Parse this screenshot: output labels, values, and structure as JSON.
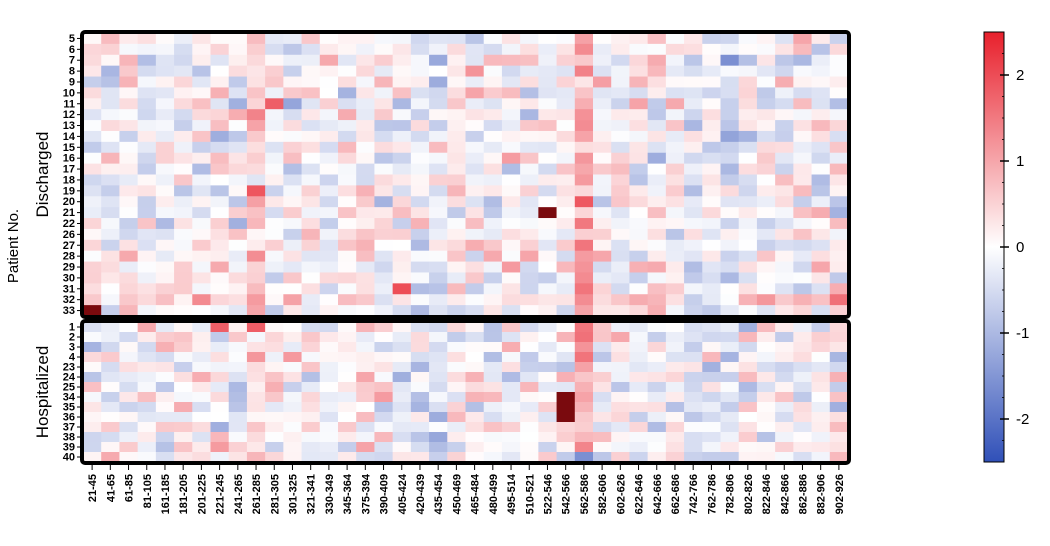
{
  "chart_data": {
    "type": "heatmap",
    "ylabel": "Patient No.",
    "x_labels": [
      "21-45",
      "41-65",
      "61-85",
      "81-105",
      "161-185",
      "181-205",
      "201-225",
      "221-245",
      "241-265",
      "261-285",
      "281-305",
      "301-325",
      "321-341",
      "330-349",
      "345-364",
      "375-394",
      "390-409",
      "405-424",
      "420-439",
      "435-454",
      "450-469",
      "465-484",
      "480-499",
      "495-514",
      "510-521",
      "522-546",
      "542-566",
      "562-586",
      "582-606",
      "602-626",
      "622-646",
      "642-666",
      "662-686",
      "742-766",
      "762-786",
      "782-806",
      "802-826",
      "822-846",
      "842-866",
      "862-886",
      "882-906",
      "902-926"
    ],
    "groups": [
      {
        "name": "Discharged",
        "rows": [
          "5",
          "6",
          "7",
          "8",
          "9",
          "10",
          "11",
          "12",
          "13",
          "14",
          "15",
          "16",
          "17",
          "18",
          "19",
          "20",
          "21",
          "22",
          "26",
          "27",
          "28",
          "29",
          "30",
          "31",
          "32",
          "33"
        ]
      },
      {
        "name": "Hospitalized",
        "rows": [
          "1",
          "2",
          "3",
          "4",
          "23",
          "24",
          "25",
          "34",
          "35",
          "36",
          "37",
          "38",
          "39",
          "40"
        ]
      }
    ],
    "colorbar": {
      "min": -2.5,
      "max": 2.5,
      "ticks": [
        "2",
        "1",
        "0",
        "-1",
        "-2"
      ],
      "tick_values": [
        2,
        1,
        0,
        -1,
        -2
      ],
      "low_color": "#3050b8",
      "mid_color": "#ffffff",
      "high_color": "#e8202c",
      "extreme_color": "#7a0a0e"
    },
    "value_samples": [
      {
        "group": "Discharged",
        "row": "33",
        "col": "21-45",
        "value": 2.5
      },
      {
        "group": "Discharged",
        "row": "21",
        "col": "522-546",
        "value": 2.5
      },
      {
        "group": "Discharged",
        "row": "31",
        "col": "405-424",
        "value": 2.0
      },
      {
        "group": "Discharged",
        "row": "19",
        "col": "261-285",
        "value": 1.9
      },
      {
        "group": "Discharged",
        "row": "11",
        "col": "281-305",
        "value": 1.8
      },
      {
        "group": "Discharged",
        "row": "32",
        "col": "902-926",
        "value": 1.6
      },
      {
        "group": "Hospitalized",
        "row": "34",
        "col": "542-566",
        "value": 2.5
      },
      {
        "group": "Hospitalized",
        "row": "35",
        "col": "542-566",
        "value": 2.5
      },
      {
        "group": "Hospitalized",
        "row": "36",
        "col": "542-566",
        "value": 2.5
      },
      {
        "group": "Hospitalized",
        "row": "1",
        "col": "221-245",
        "value": 1.8
      },
      {
        "group": "Hospitalized",
        "row": "1",
        "col": "261-285",
        "value": 1.8
      },
      {
        "group": "Discharged",
        "row": "7",
        "col": "782-806",
        "value": -1.6
      },
      {
        "group": "Discharged",
        "row": "14",
        "col": "782-806",
        "value": -1.3
      },
      {
        "group": "Hospitalized",
        "row": "40",
        "col": "562-586",
        "value": -1.6
      }
    ]
  }
}
